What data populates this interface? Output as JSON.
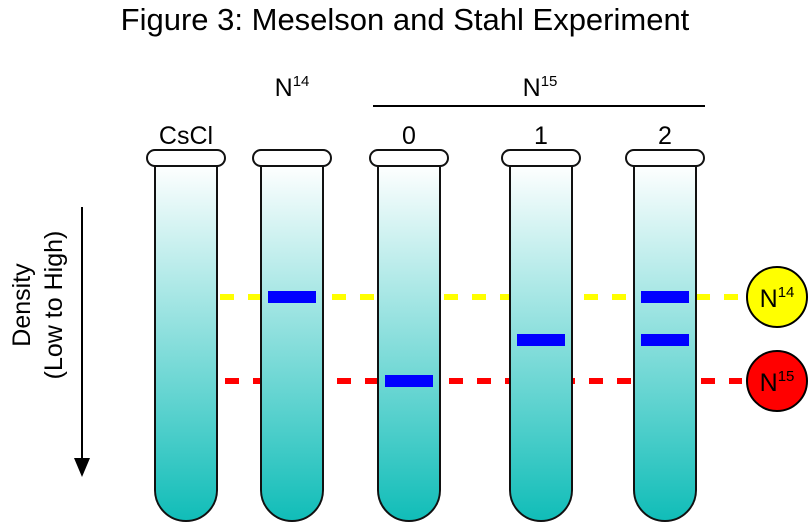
{
  "title": "Figure 3: Meselson and Stahl Experiment",
  "axis_label_line1": "Density",
  "axis_label_line2": "(Low to High)",
  "group_label": {
    "base": "N",
    "sup": "15"
  },
  "tubes": [
    {
      "label": "CsCl",
      "label_sup": "",
      "bands": []
    },
    {
      "label": "N",
      "label_sup": "14",
      "bands": [
        "light"
      ]
    },
    {
      "label": "0",
      "label_sup": "",
      "bands": [
        "heavy"
      ]
    },
    {
      "label": "1",
      "label_sup": "",
      "bands": [
        "hybrid"
      ]
    },
    {
      "label": "2",
      "label_sup": "",
      "bands": [
        "light",
        "hybrid"
      ]
    }
  ],
  "legend": [
    {
      "base": "N",
      "sup": "14",
      "color": "#ffff00",
      "level": "light"
    },
    {
      "base": "N",
      "sup": "15",
      "color": "#ff0000",
      "level": "heavy"
    }
  ],
  "colors": {
    "band": "#0000ff",
    "gradient_top": "#ffffff",
    "gradient_bottom": "#10bdb8"
  }
}
